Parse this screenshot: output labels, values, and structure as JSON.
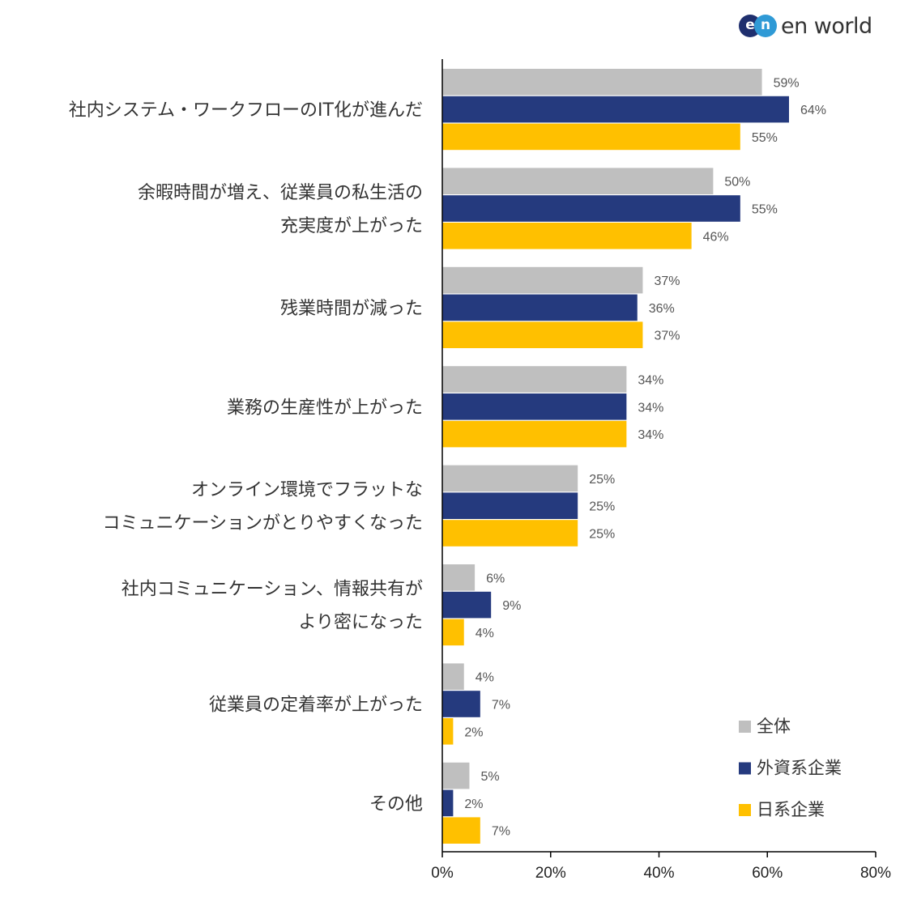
{
  "logo": {
    "mark_e": "e",
    "mark_n": "n",
    "text": "en world"
  },
  "chart_data": {
    "type": "bar",
    "orientation": "horizontal",
    "categories": [
      [
        "社内システム・ワークフローのIT化が進んだ"
      ],
      [
        "余暇時間が増え、従業員の私生活の",
        "充実度が上がった"
      ],
      [
        "残業時間が減った"
      ],
      [
        "業務の生産性が上がった"
      ],
      [
        "オンライン環境でフラットな",
        "コミュニケーションがとりやすくなった"
      ],
      [
        "社内コミュニケーション、情報共有が",
        "より密になった"
      ],
      [
        "従業員の定着率が上がった"
      ],
      [
        "その他"
      ]
    ],
    "series": [
      {
        "name": "全体",
        "color": "#bfbfbf",
        "values": [
          59,
          50,
          37,
          34,
          25,
          6,
          4,
          5
        ]
      },
      {
        "name": "外資系企業",
        "color": "#253a7e",
        "values": [
          64,
          55,
          36,
          34,
          25,
          9,
          7,
          2
        ]
      },
      {
        "name": "日系企業",
        "color": "#ffc000",
        "values": [
          55,
          46,
          37,
          34,
          25,
          4,
          2,
          7
        ]
      }
    ],
    "value_suffix": "%",
    "xlim": [
      0,
      80
    ],
    "xticks": [
      0,
      20,
      40,
      60,
      80
    ],
    "xtick_labels": [
      "0%",
      "20%",
      "40%",
      "60%",
      "80%"
    ],
    "title": "",
    "xlabel": "",
    "ylabel": "",
    "legend_position": "bottom-right",
    "grid": false
  }
}
